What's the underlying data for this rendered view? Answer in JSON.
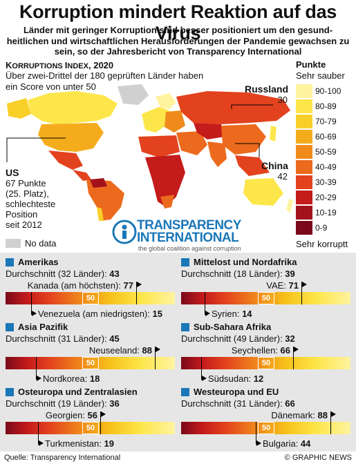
{
  "header": {
    "title": "Korruption mindert Reaktion auf das Virus",
    "subtitle": "Länder mit geringer Korruption sind besser positioniert um den gesund-heitlichen und wirtschaftlichen Herausforderungen der Pandemie gewachsen zu sein, so der Jahresbericht von Transparency International"
  },
  "index": {
    "title_lead": "K",
    "title_rest": "ORRUPTIONS ",
    "title_lead2": "I",
    "title_rest2": "NDEX",
    "title_year": ", 2020",
    "note": "Über zwei-Drittel der 180 geprüften Länder haben ein Score von unter 50"
  },
  "callouts": {
    "russia": {
      "name": "Russland",
      "value": "30"
    },
    "china": {
      "name": "China",
      "value": "42"
    },
    "us": {
      "name": "US",
      "line1": "67 Punkte",
      "line2": "(25. Platz),",
      "line3": "schlechteste",
      "line4": "Position",
      "line5": "seit 2012"
    }
  },
  "legend": {
    "title": "Punkte",
    "top_label": "Sehr sauber",
    "bottom_label": "Sehr korruptt",
    "no_data": "No data",
    "bins": [
      {
        "label": "90-100",
        "color": "#fff3a0"
      },
      {
        "label": "80-89",
        "color": "#fde64a"
      },
      {
        "label": "70-79",
        "color": "#f9cf2a"
      },
      {
        "label": "60-69",
        "color": "#f5ac1c"
      },
      {
        "label": "50-59",
        "color": "#f08a1b"
      },
      {
        "label": "40-49",
        "color": "#ec6a1d"
      },
      {
        "label": "30-39",
        "color": "#e3421e"
      },
      {
        "label": "20-29",
        "color": "#c41b1b"
      },
      {
        "label": "10-19",
        "color": "#a3121c"
      },
      {
        "label": "0-9",
        "color": "#7a0a1a"
      }
    ]
  },
  "logo": {
    "name_line1": "TRANSPARENCY",
    "name_line2": "INTERNATIONAL",
    "tagline": "the global coalition against corruption",
    "brand_color": "#1a77b8"
  },
  "chart_data": {
    "type": "bar",
    "scale": [
      0,
      100
    ],
    "midpoint_label": "50",
    "regions": [
      {
        "name": "Amerikas",
        "avg_text": "Durchschnitt (32 Länder): ",
        "avg": 43,
        "high_text": "Kanada (am höchsten): ",
        "high": 77,
        "low_text": "Venezuela (am niedrigsten): ",
        "low": 15
      },
      {
        "name": "Mittelost und Nordafrika",
        "avg_text": "Durchschnitt (18 Länder): ",
        "avg": 39,
        "high_text": "VAE: ",
        "high": 71,
        "low_text": "Syrien: ",
        "low": 14
      },
      {
        "name": "Asia Pazifik",
        "avg_text": "Durchschnitt (31 Länder): ",
        "avg": 45,
        "high_text": "Neuseeland: ",
        "high": 88,
        "low_text": "Nordkorea: ",
        "low": 18
      },
      {
        "name": "Sub-Sahara Afrika",
        "avg_text": "Durchschnitt (49 Länder): ",
        "avg": 32,
        "high_text": "Seychellen: ",
        "high": 66,
        "low_text": "Südsudan: ",
        "low": 12
      },
      {
        "name": "Osteuropa und Zentralasien",
        "avg_text": "Durchschnitt (19 Länder): ",
        "avg": 36,
        "high_text": "Georgien: ",
        "high": 56,
        "low_text": "Turkmenistan: ",
        "low": 19
      },
      {
        "name": "Westeuropa und EU",
        "avg_text": "Durchschnitt (31 Länder): ",
        "avg": 66,
        "high_text": "Dänemark: ",
        "high": 88,
        "low_text": "Bulgaria: ",
        "low": 44
      }
    ]
  },
  "footer": {
    "source": "Quelle: Transparency International",
    "credit": "© GRAPHIC NEWS"
  }
}
